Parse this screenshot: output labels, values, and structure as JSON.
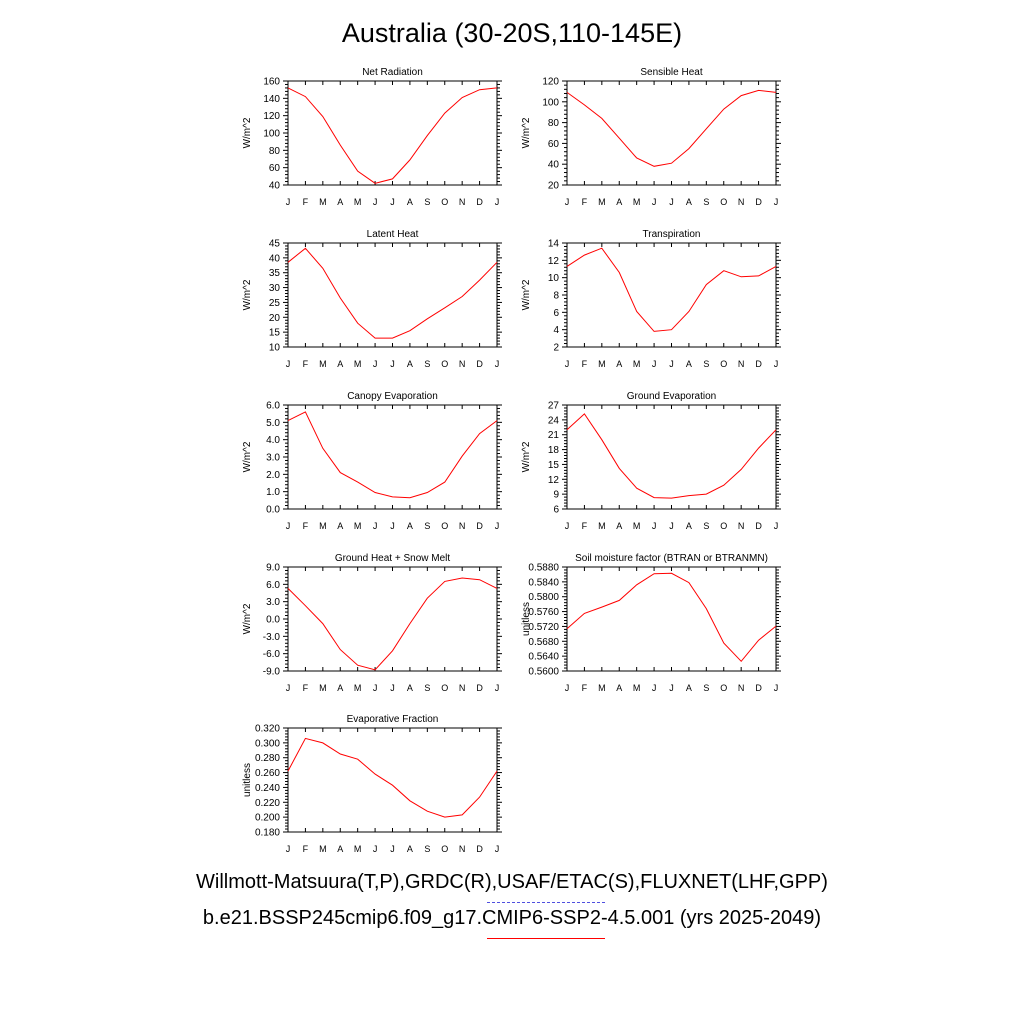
{
  "title": "Australia (30-20S,110-145E)",
  "legend": {
    "obs_label": "Willmott-Matsuura(T,P),GRDC(R),USAF/ETAC(S),FLUXNET(LHF,GPP)",
    "model_label": "b.e21.BSSP245cmip6.f09_g17.CMIP6-SSP2-4.5.001 (yrs 2025-2049)",
    "obs_color": "#5050e0",
    "model_color": "#ff0000"
  },
  "chart_data": [
    {
      "type": "line",
      "title": "Net Radiation",
      "ylabel": "W/m^2",
      "categories": [
        "J",
        "F",
        "M",
        "A",
        "M",
        "J",
        "J",
        "A",
        "S",
        "O",
        "N",
        "D",
        "J"
      ],
      "ylim": [
        40,
        160
      ],
      "yticks": [
        "40",
        "60",
        "80",
        "100",
        "120",
        "140",
        "160"
      ],
      "series": [
        {
          "values": [
            152,
            142,
            119,
            86,
            56,
            42,
            47,
            69,
            97,
            123,
            141,
            150,
            152
          ]
        }
      ]
    },
    {
      "type": "line",
      "title": "Sensible Heat",
      "ylabel": "W/m^2",
      "categories": [
        "J",
        "F",
        "M",
        "A",
        "M",
        "J",
        "J",
        "A",
        "S",
        "O",
        "N",
        "D",
        "J"
      ],
      "ylim": [
        20,
        120
      ],
      "yticks": [
        "20",
        "40",
        "60",
        "80",
        "100",
        "120"
      ],
      "series": [
        {
          "values": [
            109,
            97,
            84,
            65,
            46,
            38,
            41,
            55,
            74,
            93,
            106,
            111,
            109
          ]
        }
      ]
    },
    {
      "type": "line",
      "title": "Latent Heat",
      "ylabel": "W/m^2",
      "categories": [
        "J",
        "F",
        "M",
        "A",
        "M",
        "J",
        "J",
        "A",
        "S",
        "O",
        "N",
        "D",
        "J"
      ],
      "ylim": [
        10,
        45
      ],
      "yticks": [
        "10",
        "15",
        "20",
        "25",
        "30",
        "35",
        "40",
        "45"
      ],
      "series": [
        {
          "values": [
            38.5,
            43.2,
            36.5,
            26.5,
            18.0,
            13.0,
            13.0,
            15.5,
            19.5,
            23.2,
            27.0,
            32.5,
            38.5
          ]
        }
      ]
    },
    {
      "type": "line",
      "title": "Transpiration",
      "ylabel": "W/m^2",
      "categories": [
        "J",
        "F",
        "M",
        "A",
        "M",
        "J",
        "J",
        "A",
        "S",
        "O",
        "N",
        "D",
        "J"
      ],
      "ylim": [
        2,
        14
      ],
      "yticks": [
        "2",
        "4",
        "6",
        "8",
        "10",
        "12",
        "14"
      ],
      "series": [
        {
          "values": [
            11.3,
            12.6,
            13.4,
            10.6,
            6.1,
            3.8,
            4.0,
            6.1,
            9.2,
            10.8,
            10.1,
            10.2,
            11.3
          ]
        }
      ]
    },
    {
      "type": "line",
      "title": "Canopy Evaporation",
      "ylabel": "W/m^2",
      "categories": [
        "J",
        "F",
        "M",
        "A",
        "M",
        "J",
        "J",
        "A",
        "S",
        "O",
        "N",
        "D",
        "J"
      ],
      "ylim": [
        0,
        6
      ],
      "yticks": [
        "0.0",
        "1.0",
        "2.0",
        "3.0",
        "4.0",
        "5.0",
        "6.0"
      ],
      "series": [
        {
          "values": [
            5.1,
            5.6,
            3.5,
            2.1,
            1.55,
            0.95,
            0.7,
            0.65,
            0.95,
            1.55,
            3.05,
            4.35,
            5.1
          ]
        }
      ]
    },
    {
      "type": "line",
      "title": "Ground Evaporation",
      "ylabel": "W/m^2",
      "categories": [
        "J",
        "F",
        "M",
        "A",
        "M",
        "J",
        "J",
        "A",
        "S",
        "O",
        "N",
        "D",
        "J"
      ],
      "ylim": [
        6,
        27
      ],
      "yticks": [
        "6",
        "9",
        "12",
        "15",
        "18",
        "21",
        "24",
        "27"
      ],
      "series": [
        {
          "values": [
            22.0,
            25.2,
            20.0,
            14.2,
            10.2,
            8.3,
            8.2,
            8.7,
            9.0,
            10.8,
            14.0,
            18.3,
            22.0
          ]
        }
      ]
    },
    {
      "type": "line",
      "title": "Ground Heat + Snow Melt",
      "ylabel": "W/m^2",
      "categories": [
        "J",
        "F",
        "M",
        "A",
        "M",
        "J",
        "J",
        "A",
        "S",
        "O",
        "N",
        "D",
        "J"
      ],
      "ylim": [
        -9,
        9
      ],
      "yticks": [
        "-9.0",
        "-6.0",
        "-3.0",
        "0.0",
        "3.0",
        "6.0",
        "9.0"
      ],
      "series": [
        {
          "values": [
            5.3,
            2.3,
            -0.8,
            -5.3,
            -8.0,
            -8.8,
            -5.5,
            -0.8,
            3.6,
            6.5,
            7.1,
            6.8,
            5.3
          ]
        }
      ]
    },
    {
      "type": "line",
      "title": "Soil moisture factor (BTRAN or BTRANMN)",
      "ylabel": "unitless",
      "categories": [
        "J",
        "F",
        "M",
        "A",
        "M",
        "J",
        "J",
        "A",
        "S",
        "O",
        "N",
        "D",
        "J"
      ],
      "ylim": [
        0.56,
        0.588
      ],
      "yticks": [
        "0.5600",
        "0.5640",
        "0.5680",
        "0.5720",
        "0.5760",
        "0.5800",
        "0.5840",
        "0.5880"
      ],
      "series": [
        {
          "values": [
            0.5714,
            0.5755,
            0.5772,
            0.579,
            0.5832,
            0.5862,
            0.5863,
            0.5838,
            0.5768,
            0.5675,
            0.5626,
            0.5683,
            0.5721
          ]
        }
      ]
    },
    {
      "type": "line",
      "title": "Evaporative Fraction",
      "ylabel": "unitless",
      "categories": [
        "J",
        "F",
        "M",
        "A",
        "M",
        "J",
        "J",
        "A",
        "S",
        "O",
        "N",
        "D",
        "J"
      ],
      "ylim": [
        0.18,
        0.32
      ],
      "yticks": [
        "0.180",
        "0.200",
        "0.220",
        "0.240",
        "0.260",
        "0.280",
        "0.300",
        "0.320"
      ],
      "series": [
        {
          "values": [
            0.262,
            0.306,
            0.3,
            0.285,
            0.278,
            0.258,
            0.243,
            0.222,
            0.208,
            0.2,
            0.203,
            0.227,
            0.262
          ]
        }
      ]
    }
  ]
}
